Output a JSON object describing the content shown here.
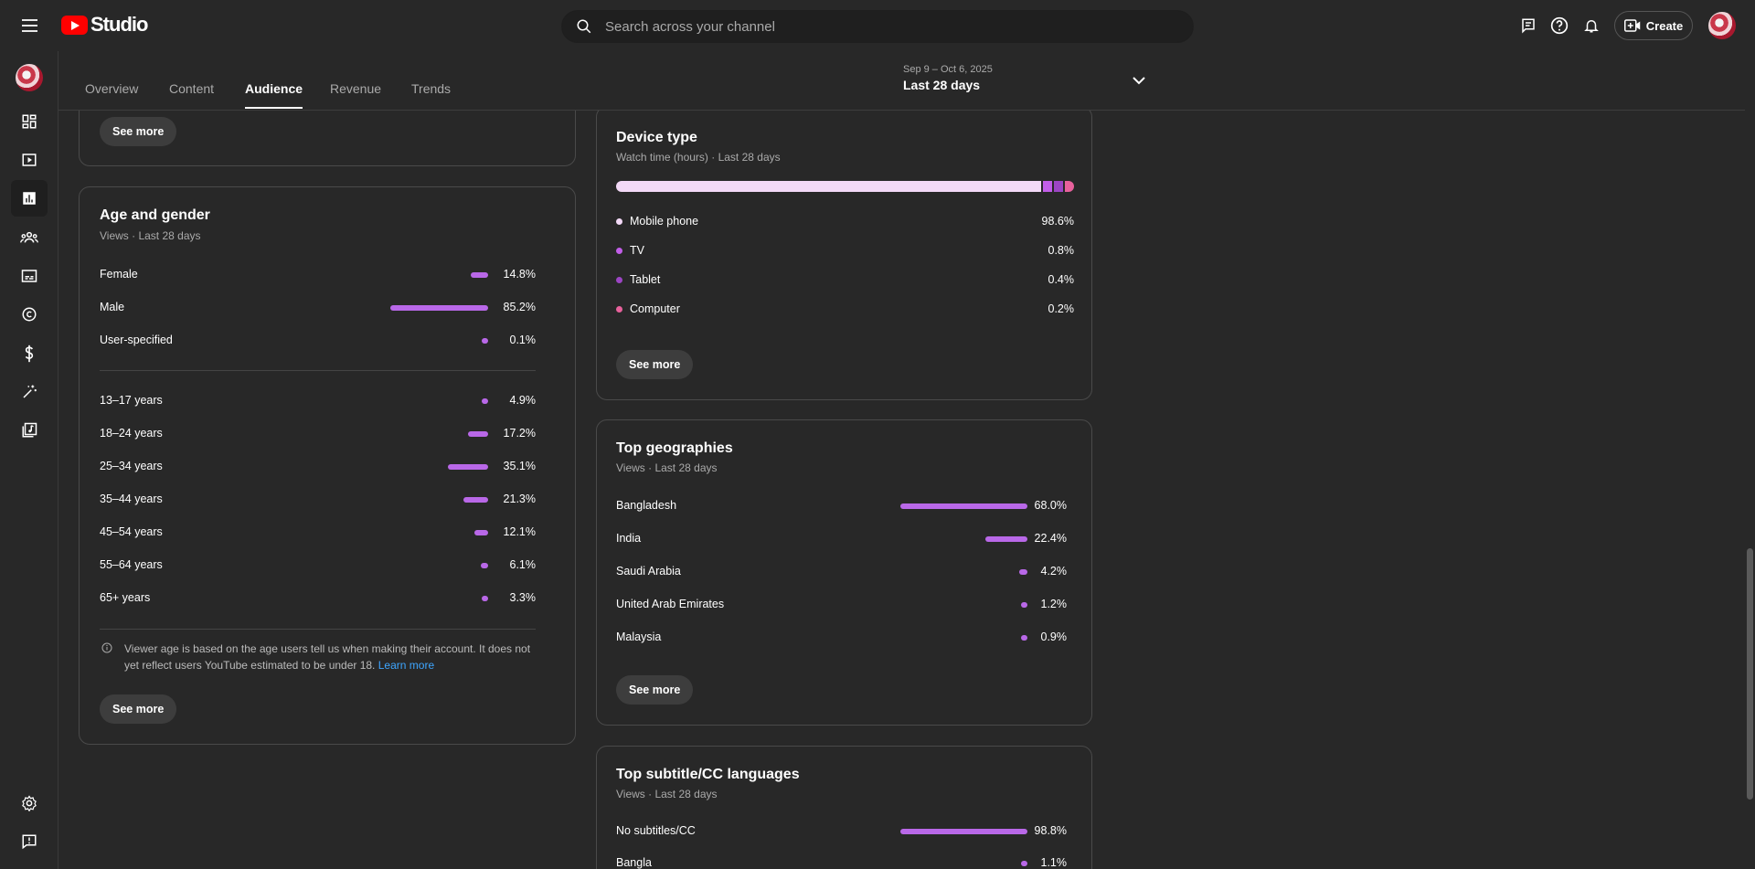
{
  "app": {
    "logo_text": "Studio"
  },
  "search": {
    "placeholder": "Search across your channel"
  },
  "header": {
    "create_label": "Create"
  },
  "tabs": [
    {
      "label": "Overview"
    },
    {
      "label": "Content"
    },
    {
      "label": "Audience",
      "active": true
    },
    {
      "label": "Revenue"
    },
    {
      "label": "Trends"
    }
  ],
  "date_range": {
    "dates": "Sep 9 – Oct 6, 2025",
    "period": "Last 28 days"
  },
  "prev_card": {
    "see_more": "See more"
  },
  "age_gender": {
    "title": "Age and gender",
    "subtitle": "Views · Last 28 days",
    "gender": [
      {
        "label": "Female",
        "value": "14.8%",
        "fraction": 0.148
      },
      {
        "label": "Male",
        "value": "85.2%",
        "fraction": 0.852
      },
      {
        "label": "User-specified",
        "value": "0.1%",
        "fraction": 0.001
      }
    ],
    "ages": [
      {
        "label": "13–17 years",
        "value": "4.9%",
        "fraction": 0.049
      },
      {
        "label": "18–24 years",
        "value": "17.2%",
        "fraction": 0.172
      },
      {
        "label": "25–34 years",
        "value": "35.1%",
        "fraction": 0.351
      },
      {
        "label": "35–44 years",
        "value": "21.3%",
        "fraction": 0.213
      },
      {
        "label": "45–54 years",
        "value": "12.1%",
        "fraction": 0.121
      },
      {
        "label": "55–64 years",
        "value": "6.1%",
        "fraction": 0.061
      },
      {
        "label": "65+ years",
        "value": "3.3%",
        "fraction": 0.033
      }
    ],
    "note": "Viewer age is based on the age users tell us when making their account. It does not yet reflect users YouTube estimated to be under 18.",
    "learn_more": "Learn more",
    "see_more": "See more"
  },
  "device_type": {
    "title": "Device type",
    "subtitle": "Watch time (hours) · Last 28 days",
    "items": [
      {
        "label": "Mobile phone",
        "value": "98.6%",
        "fraction": 0.986,
        "color": "#f3d9f7"
      },
      {
        "label": "TV",
        "value": "0.8%",
        "fraction": 0.008,
        "color": "#c25ee8"
      },
      {
        "label": "Tablet",
        "value": "0.4%",
        "fraction": 0.004,
        "color": "#9c45c4"
      },
      {
        "label": "Computer",
        "value": "0.2%",
        "fraction": 0.002,
        "color": "#e8619c"
      }
    ],
    "see_more": "See more"
  },
  "top_geographies": {
    "title": "Top geographies",
    "subtitle": "Views · Last 28 days",
    "items": [
      {
        "label": "Bangladesh",
        "value": "68.0%",
        "fraction": 0.68
      },
      {
        "label": "India",
        "value": "22.4%",
        "fraction": 0.224
      },
      {
        "label": "Saudi Arabia",
        "value": "4.2%",
        "fraction": 0.042
      },
      {
        "label": "United Arab Emirates",
        "value": "1.2%",
        "fraction": 0.012
      },
      {
        "label": "Malaysia",
        "value": "0.9%",
        "fraction": 0.009
      }
    ],
    "see_more": "See more"
  },
  "top_subtitles": {
    "title": "Top subtitle/CC languages",
    "subtitle": "Views · Last 28 days",
    "items": [
      {
        "label": "No subtitles/CC",
        "value": "98.8%",
        "fraction": 0.988
      },
      {
        "label": "Bangla",
        "value": "1.1%",
        "fraction": 0.011
      }
    ]
  },
  "colors": {
    "accent_bar": "#b968e8",
    "link": "#3ea6ff",
    "background": "#282828"
  },
  "icons": [
    "menu-icon",
    "youtube-logo-icon",
    "search-icon",
    "feedback-icon",
    "help-icon",
    "notifications-icon",
    "create-icon",
    "chevron-down-icon",
    "dashboard-icon",
    "content-icon",
    "analytics-icon",
    "community-icon",
    "subtitles-icon",
    "copyright-icon",
    "earn-icon",
    "customization-icon",
    "audio-library-icon",
    "settings-icon",
    "send-feedback-icon",
    "info-icon"
  ]
}
